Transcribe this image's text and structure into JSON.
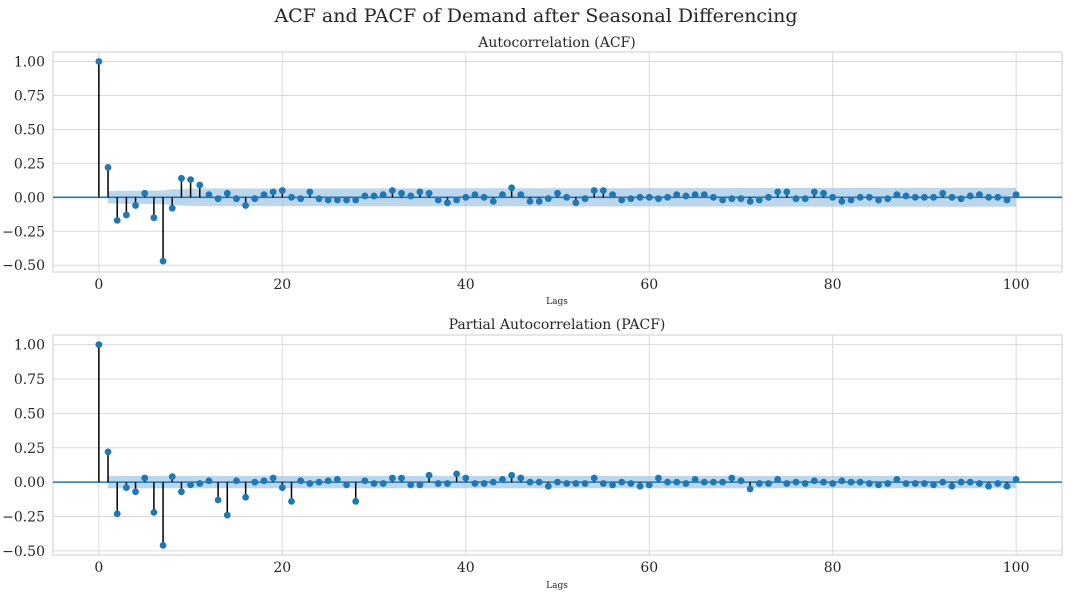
{
  "figure": {
    "suptitle": "ACF and PACF of  Demand after Seasonal Differencing"
  },
  "chart_data": [
    {
      "type": "scatter",
      "style": "stem",
      "title": "Autocorrelation (ACF)",
      "xlabel": "Lags",
      "ylabel": "",
      "xlim": [
        -5,
        105
      ],
      "ylim": [
        -0.55,
        1.07
      ],
      "xticks": [
        0,
        20,
        40,
        60,
        80,
        100
      ],
      "yticks": [
        -0.5,
        -0.25,
        0.0,
        0.25,
        0.5,
        0.75,
        1.0
      ],
      "ytick_labels": [
        "−0.50",
        "−0.25",
        "0.00",
        "0.25",
        "0.50",
        "0.75",
        "1.00"
      ],
      "grid": true,
      "marker_color": "#1f77b4",
      "stem_color": "#000000",
      "band_color": "#a6c8e4",
      "x": [
        0,
        1,
        2,
        3,
        4,
        5,
        6,
        7,
        8,
        9,
        10,
        11,
        12,
        13,
        14,
        15,
        16,
        17,
        18,
        19,
        20,
        21,
        22,
        23,
        24,
        25,
        26,
        27,
        28,
        29,
        30,
        31,
        32,
        33,
        34,
        35,
        36,
        37,
        38,
        39,
        40,
        41,
        42,
        43,
        44,
        45,
        46,
        47,
        48,
        49,
        50,
        51,
        52,
        53,
        54,
        55,
        56,
        57,
        58,
        59,
        60,
        61,
        62,
        63,
        64,
        65,
        66,
        67,
        68,
        69,
        70,
        71,
        72,
        73,
        74,
        75,
        76,
        77,
        78,
        79,
        80,
        81,
        82,
        83,
        84,
        85,
        86,
        87,
        88,
        89,
        90,
        91,
        92,
        93,
        94,
        95,
        96,
        97,
        98,
        99,
        100
      ],
      "values": [
        1.0,
        0.22,
        -0.17,
        -0.13,
        -0.06,
        0.03,
        -0.15,
        -0.47,
        -0.08,
        0.14,
        0.13,
        0.09,
        0.02,
        -0.01,
        0.03,
        -0.01,
        -0.06,
        -0.01,
        0.02,
        0.04,
        0.05,
        0.0,
        -0.01,
        0.04,
        -0.01,
        -0.02,
        -0.02,
        -0.02,
        -0.02,
        0.01,
        0.01,
        0.02,
        0.05,
        0.03,
        0.01,
        0.04,
        0.03,
        -0.02,
        -0.04,
        -0.02,
        0.0,
        0.02,
        0.0,
        -0.03,
        0.02,
        0.07,
        0.02,
        -0.03,
        -0.03,
        -0.01,
        0.03,
        0.0,
        -0.04,
        -0.01,
        0.05,
        0.05,
        0.02,
        -0.02,
        -0.01,
        0.0,
        0.0,
        -0.01,
        0.0,
        0.02,
        0.01,
        0.02,
        0.02,
        0.0,
        -0.02,
        -0.01,
        -0.01,
        -0.03,
        -0.02,
        0.0,
        0.04,
        0.04,
        -0.01,
        -0.01,
        0.04,
        0.03,
        0.0,
        -0.03,
        -0.02,
        0.0,
        0.0,
        -0.02,
        -0.01,
        0.02,
        0.01,
        0.0,
        0.0,
        0.0,
        0.03,
        0.0,
        -0.01,
        0.01,
        0.02,
        0.0,
        0.0,
        -0.02,
        0.02
      ],
      "confidence_band": {
        "lags": [
          1,
          2,
          7,
          8,
          9,
          10,
          100
        ],
        "upper": [
          0.045,
          0.048,
          0.05,
          0.058,
          0.06,
          0.065,
          0.07
        ],
        "lower": [
          -0.045,
          -0.048,
          -0.05,
          -0.058,
          -0.06,
          -0.065,
          -0.07
        ]
      }
    },
    {
      "type": "scatter",
      "style": "stem",
      "title": "Partial Autocorrelation (PACF)",
      "xlabel": "Lags",
      "ylabel": "",
      "xlim": [
        -5,
        105
      ],
      "ylim": [
        -0.53,
        1.07
      ],
      "xticks": [
        0,
        20,
        40,
        60,
        80,
        100
      ],
      "yticks": [
        -0.5,
        -0.25,
        0.0,
        0.25,
        0.5,
        0.75,
        1.0
      ],
      "ytick_labels": [
        "−0.50",
        "−0.25",
        "0.00",
        "0.25",
        "0.50",
        "0.75",
        "1.00"
      ],
      "grid": true,
      "marker_color": "#1f77b4",
      "stem_color": "#000000",
      "band_color": "#a6c8e4",
      "x": [
        0,
        1,
        2,
        3,
        4,
        5,
        6,
        7,
        8,
        9,
        10,
        11,
        12,
        13,
        14,
        15,
        16,
        17,
        18,
        19,
        20,
        21,
        22,
        23,
        24,
        25,
        26,
        27,
        28,
        29,
        30,
        31,
        32,
        33,
        34,
        35,
        36,
        37,
        38,
        39,
        40,
        41,
        42,
        43,
        44,
        45,
        46,
        47,
        48,
        49,
        50,
        51,
        52,
        53,
        54,
        55,
        56,
        57,
        58,
        59,
        60,
        61,
        62,
        63,
        64,
        65,
        66,
        67,
        68,
        69,
        70,
        71,
        72,
        73,
        74,
        75,
        76,
        77,
        78,
        79,
        80,
        81,
        82,
        83,
        84,
        85,
        86,
        87,
        88,
        89,
        90,
        91,
        92,
        93,
        94,
        95,
        96,
        97,
        98,
        99,
        100
      ],
      "values": [
        1.0,
        0.22,
        -0.23,
        -0.04,
        -0.07,
        0.03,
        -0.22,
        -0.46,
        0.04,
        -0.07,
        -0.02,
        -0.01,
        0.01,
        -0.13,
        -0.24,
        0.01,
        -0.11,
        0.0,
        0.01,
        0.03,
        -0.04,
        -0.14,
        0.01,
        -0.01,
        0.0,
        0.01,
        0.02,
        -0.02,
        -0.14,
        0.01,
        -0.01,
        -0.01,
        0.03,
        0.03,
        -0.02,
        -0.02,
        0.05,
        -0.01,
        -0.01,
        0.06,
        0.03,
        -0.01,
        -0.01,
        0.0,
        0.02,
        0.05,
        0.03,
        0.0,
        0.0,
        -0.03,
        0.0,
        -0.01,
        -0.01,
        -0.01,
        0.03,
        -0.01,
        -0.02,
        0.0,
        -0.01,
        -0.03,
        -0.02,
        0.03,
        0.0,
        0.0,
        -0.01,
        0.02,
        0.0,
        0.0,
        0.0,
        0.03,
        0.01,
        -0.05,
        -0.01,
        -0.01,
        0.02,
        -0.01,
        0.0,
        -0.01,
        0.01,
        0.0,
        -0.01,
        0.01,
        0.0,
        0.0,
        -0.01,
        -0.02,
        -0.01,
        0.02,
        -0.01,
        -0.01,
        -0.01,
        -0.02,
        0.0,
        -0.03,
        0.0,
        0.0,
        -0.01,
        -0.03,
        -0.01,
        -0.03,
        0.02
      ],
      "confidence_band": {
        "lags": [
          1,
          100
        ],
        "upper": [
          0.045,
          0.045
        ],
        "lower": [
          -0.045,
          -0.045
        ]
      }
    }
  ]
}
